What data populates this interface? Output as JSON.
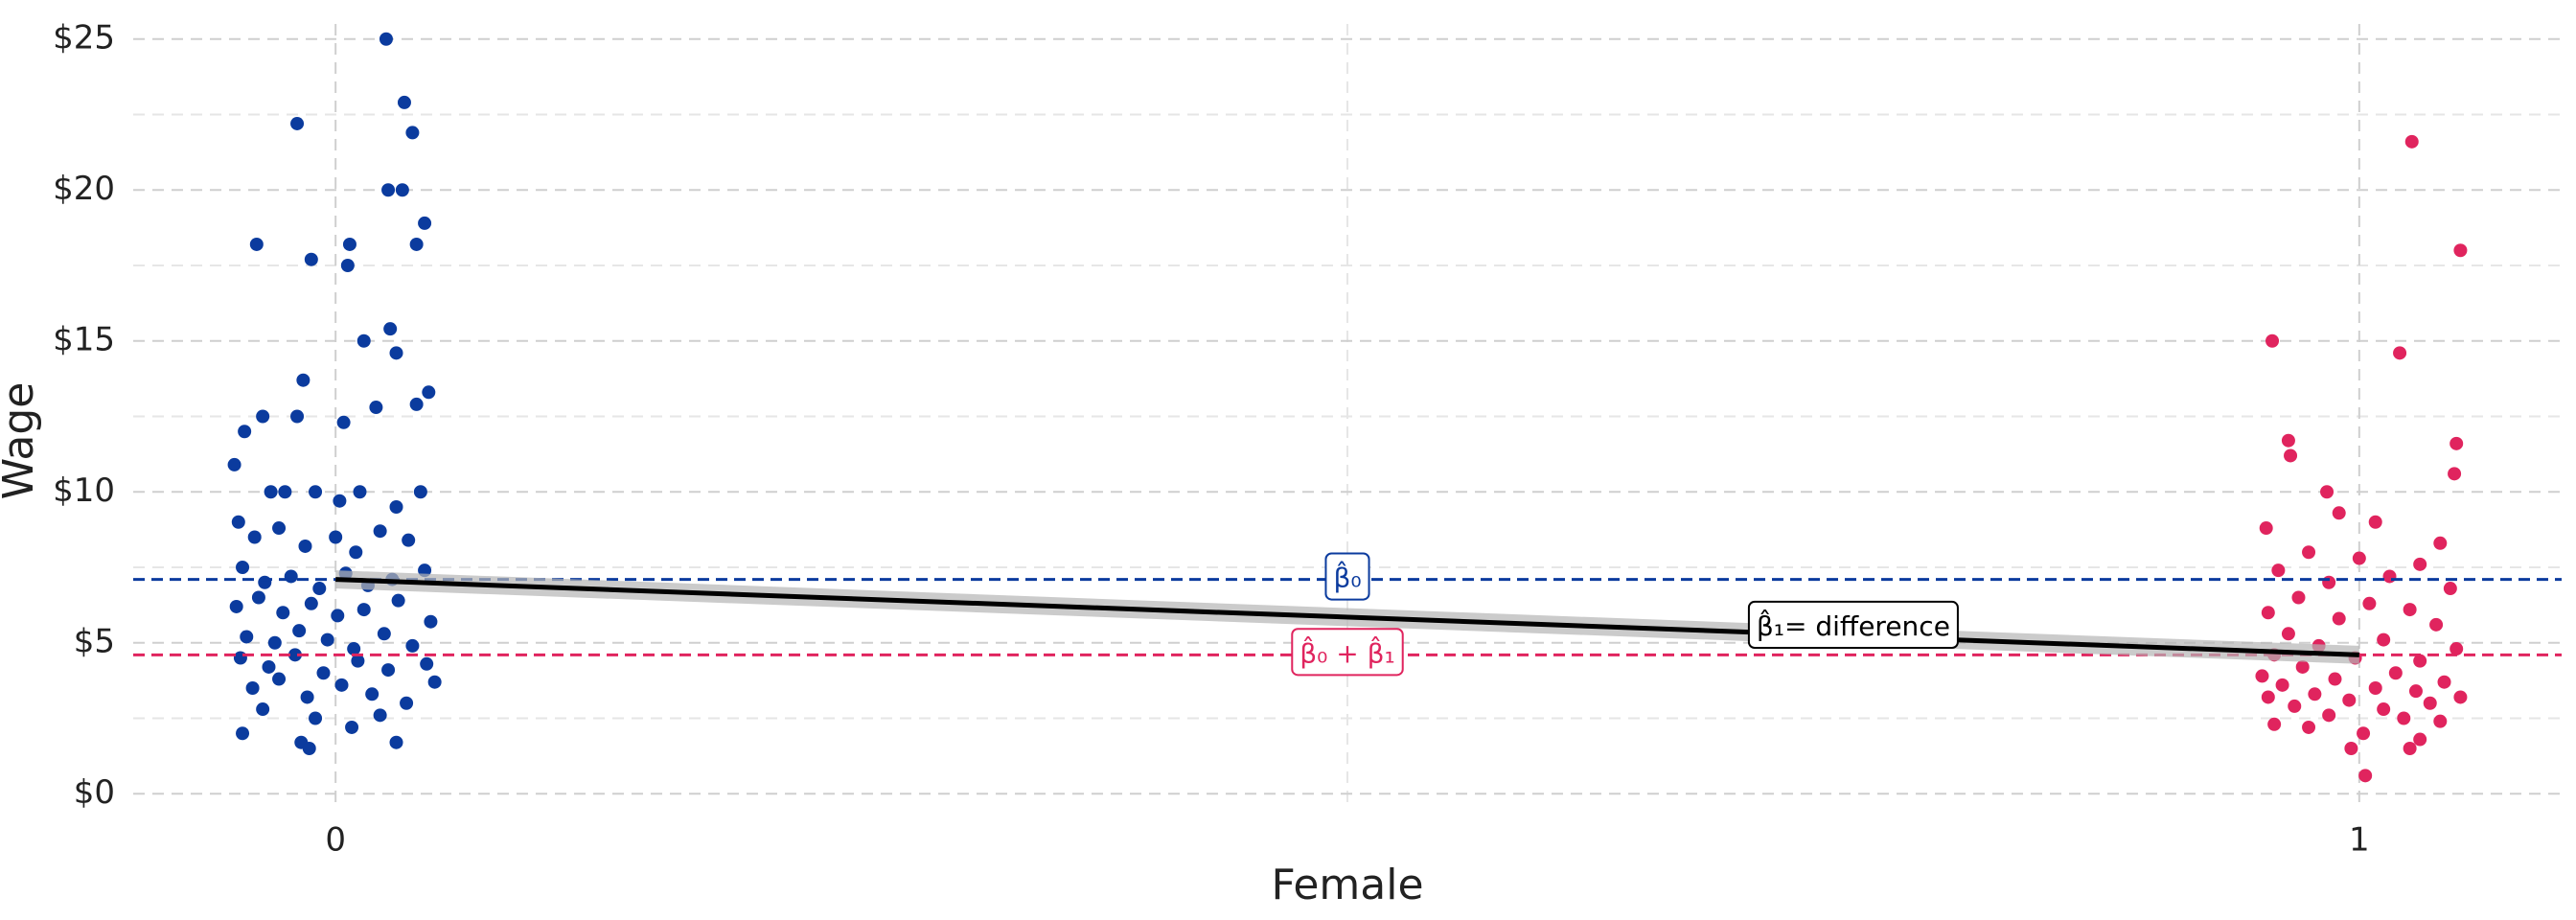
{
  "chart_data": {
    "type": "scatter",
    "x_label": "Female",
    "y_label": "Wage",
    "xlim": [
      -0.1,
      1.1
    ],
    "xticks": [
      0,
      1
    ],
    "x_minor_grid": [
      0.5
    ],
    "ylim": [
      -0.5,
      25.5
    ],
    "yticks": [
      {
        "value": 0,
        "label": "$0"
      },
      {
        "value": 5,
        "label": "$5"
      },
      {
        "value": 10,
        "label": "$10"
      },
      {
        "value": 15,
        "label": "$15"
      },
      {
        "value": 20,
        "label": "$20"
      },
      {
        "value": 25,
        "label": "$25"
      }
    ],
    "y_minor_grid": [
      2.5,
      7.5,
      12.5,
      17.5,
      22.5
    ],
    "grid": true,
    "series": [
      {
        "color": "#0b3b9e",
        "x": [
          -0.019,
          0.025,
          0.034,
          0.038,
          -0.039,
          -0.012,
          0.007,
          0.006,
          0.044,
          0.026,
          0.033,
          0.04,
          0.027,
          0.014,
          0.03,
          0.046,
          -0.016,
          -0.045,
          -0.036,
          -0.019,
          0.004,
          0.02,
          0.04,
          -0.05,
          -0.032,
          -0.025,
          -0.01,
          0.002,
          0.012,
          0.03,
          0.042,
          -0.048,
          -0.04,
          -0.028,
          -0.015,
          0.0,
          0.01,
          0.022,
          0.036,
          -0.046,
          -0.035,
          -0.022,
          -0.008,
          0.005,
          0.016,
          0.028,
          0.044,
          -0.049,
          -0.038,
          -0.026,
          -0.012,
          0.001,
          0.014,
          0.031,
          0.047,
          -0.044,
          -0.03,
          -0.018,
          -0.004,
          0.009,
          0.024,
          0.038,
          -0.047,
          -0.033,
          -0.02,
          -0.006,
          0.011,
          0.026,
          0.045,
          -0.041,
          -0.028,
          -0.014,
          0.003,
          0.018,
          0.035,
          0.049,
          -0.036,
          -0.01,
          0.008,
          0.022,
          -0.046,
          -0.017,
          -0.013,
          0.03
        ],
        "values": [
          22.2,
          25.0,
          22.9,
          21.9,
          18.2,
          17.7,
          18.2,
          17.5,
          18.9,
          20.0,
          20.0,
          18.2,
          15.4,
          15.0,
          14.6,
          13.3,
          13.7,
          12.0,
          12.5,
          12.5,
          12.3,
          12.8,
          12.9,
          10.9,
          10.0,
          10.0,
          10.0,
          9.7,
          10.0,
          9.5,
          10.0,
          9.0,
          8.5,
          8.8,
          8.2,
          8.5,
          8.0,
          8.7,
          8.4,
          7.5,
          7.0,
          7.2,
          6.8,
          7.3,
          6.9,
          7.1,
          7.4,
          6.2,
          6.5,
          6.0,
          6.3,
          5.9,
          6.1,
          6.4,
          5.7,
          5.2,
          5.0,
          5.4,
          5.1,
          4.8,
          5.3,
          4.9,
          4.5,
          4.2,
          4.6,
          4.0,
          4.4,
          4.1,
          4.3,
          3.5,
          3.8,
          3.2,
          3.6,
          3.3,
          3.0,
          3.7,
          2.8,
          2.5,
          2.2,
          2.6,
          2.0,
          1.7,
          1.5,
          1.7
        ]
      },
      {
        "color": "#e0245e",
        "x": [
          1.026,
          1.05,
          0.957,
          1.02,
          1.048,
          1.047,
          0.965,
          0.966,
          0.984,
          0.99,
          1.008,
          0.954,
          1.04,
          0.975,
          1.0,
          1.03,
          0.96,
          1.015,
          0.985,
          1.045,
          0.97,
          1.005,
          1.025,
          0.955,
          0.99,
          1.038,
          0.965,
          1.012,
          0.98,
          1.048,
          0.958,
          0.998,
          1.03,
          0.972,
          1.018,
          0.952,
          0.988,
          1.042,
          0.962,
          1.008,
          1.028,
          0.978,
          0.955,
          0.995,
          1.035,
          1.05,
          0.968,
          1.012,
          0.985,
          1.022,
          0.958,
          1.04,
          0.975,
          1.002,
          1.03,
          0.996,
          1.025,
          1.003
        ],
        "values": [
          21.6,
          18.0,
          15.0,
          14.6,
          11.6,
          10.6,
          11.7,
          11.2,
          10.0,
          9.3,
          9.0,
          8.8,
          8.3,
          8.0,
          7.8,
          7.6,
          7.4,
          7.2,
          7.0,
          6.8,
          6.5,
          6.3,
          6.1,
          6.0,
          5.8,
          5.6,
          5.3,
          5.1,
          4.9,
          4.8,
          4.6,
          4.5,
          4.4,
          4.2,
          4.0,
          3.9,
          3.8,
          3.7,
          3.6,
          3.5,
          3.4,
          3.3,
          3.2,
          3.1,
          3.0,
          3.2,
          2.9,
          2.8,
          2.6,
          2.5,
          2.3,
          2.4,
          2.2,
          2.0,
          1.8,
          1.5,
          1.5,
          0.6
        ]
      }
    ],
    "fit": {
      "color": "#000000",
      "ribbon_color": "#b5b5b5",
      "x": [
        0,
        1
      ],
      "values": [
        7.1,
        4.6
      ],
      "lower": [
        6.8,
        4.3
      ],
      "upper": [
        7.4,
        4.9
      ]
    },
    "hlines": [
      {
        "value": 7.1,
        "color": "#0b3b9e"
      },
      {
        "value": 4.6,
        "color": "#e0245e"
      }
    ],
    "annotations": [
      {
        "text": "β̂₀",
        "x": 0.5,
        "y": 7.1,
        "color": "#0b3b9e"
      },
      {
        "text": "β̂₀ + β̂₁",
        "x": 0.5,
        "y": 4.6,
        "color": "#e0245e"
      },
      {
        "text": "β̂₁= difference",
        "x": 0.75,
        "y": 5.5,
        "color": "#000000"
      }
    ]
  }
}
